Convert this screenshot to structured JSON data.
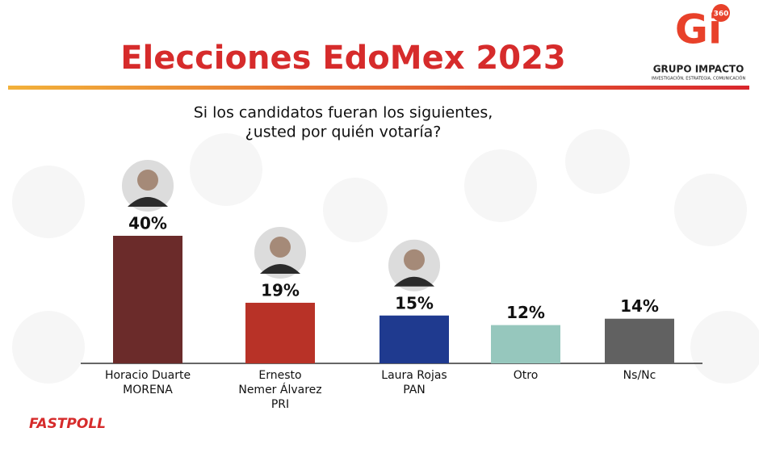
{
  "chart_data": {
    "type": "bar",
    "title": "Elecciones EdoMex 2023",
    "subtitle": [
      "Si los candidatos fueran los siguientes,",
      "¿usted por quién votaría?"
    ],
    "categories": [
      [
        "Horacio Duarte",
        "MORENA"
      ],
      [
        "Ernesto",
        "Nemer Álvarez",
        "PRI"
      ],
      [
        "Laura Rojas",
        "PAN"
      ],
      [
        "Otro"
      ],
      [
        "Ns/Nc"
      ]
    ],
    "values": [
      40,
      19,
      15,
      12,
      14
    ],
    "value_labels": [
      "40%",
      "19%",
      "15%",
      "12%",
      "14%"
    ],
    "colors": [
      "#6b2b2a",
      "#b83227",
      "#1f3a8f",
      "#96c7bd",
      "#616161"
    ],
    "source": "FASTPOLL"
  },
  "logo": {
    "mark": "Gi",
    "badge": "360",
    "name": "GRUPO IMPACTO",
    "tagline": "INVESTIGACIÓN, ESTRATEGIA, COMUNICACIÓN"
  }
}
